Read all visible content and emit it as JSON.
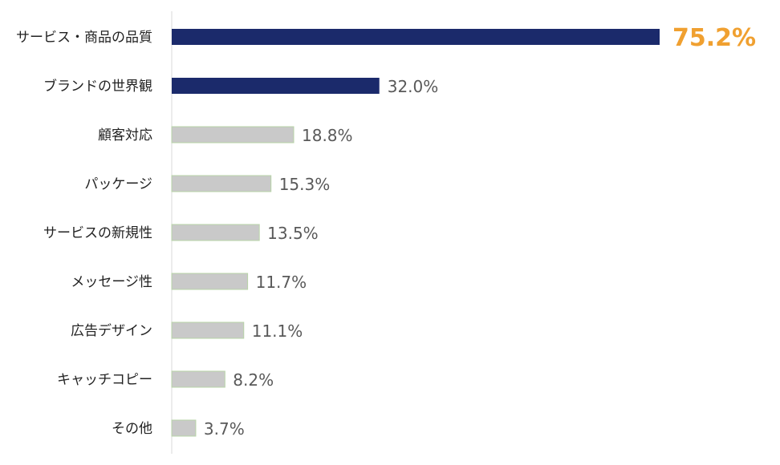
{
  "chart_data": {
    "type": "bar",
    "orientation": "horizontal",
    "categories": [
      "サービス・商品の品質",
      "ブランドの世界観",
      "顧客対応",
      "パッケージ",
      "サービスの新規性",
      "メッセージ性",
      "広告デザイン",
      "キャッチコピー",
      "その他"
    ],
    "values": [
      75.2,
      32.0,
      18.8,
      15.3,
      13.5,
      11.7,
      11.1,
      8.2,
      3.7
    ],
    "value_labels": [
      "75.2%",
      "32.0%",
      "18.8%",
      "15.3%",
      "13.5%",
      "11.7%",
      "11.1%",
      "8.2%",
      "3.7%"
    ],
    "highlight_count": 2,
    "highlighted_top_label_color": "#F0A030",
    "colors": {
      "highlight": "#1B2A6B",
      "normal": "#C9C9C9",
      "normal_edge": "#B8D4A8",
      "axis": "#D9D9D9",
      "value_text": "#595959"
    },
    "title": "",
    "xlabel": "",
    "ylabel": "",
    "xlim": [
      0,
      75.2
    ],
    "grid": false,
    "legend": "none"
  }
}
